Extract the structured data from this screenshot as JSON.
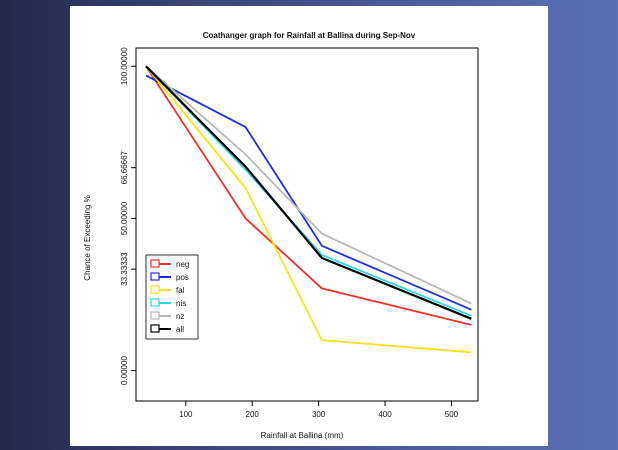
{
  "slide": {
    "background_left": "#23274a",
    "background_right": "#5b71b4"
  },
  "chart_data": {
    "type": "line",
    "title": "Coathanger graph for  Rainfall  at Ballina  during  Sep-Nov",
    "xlabel": "Rainfall at Ballina (mm)",
    "ylabel": "Chance of Exceeding %",
    "xlim": [
      25,
      540
    ],
    "ylim": [
      -10,
      106
    ],
    "x_ticks": [
      100,
      200,
      300,
      400,
      500
    ],
    "y_ticks": [
      {
        "value": 0,
        "label": "0.00000"
      },
      {
        "value": 33.33333,
        "label": "33.33333"
      },
      {
        "value": 50,
        "label": "50.00000"
      },
      {
        "value": 66.66667,
        "label": "66.66667"
      },
      {
        "value": 100,
        "label": "100.00000"
      }
    ],
    "legend_position": "bottom-left",
    "series": [
      {
        "name": "neg",
        "color": "#e8342c",
        "x": [
          40,
          190,
          305,
          530
        ],
        "y": [
          100,
          50,
          27,
          15
        ]
      },
      {
        "name": "pos",
        "color": "#1f2fd6",
        "x": [
          40,
          190,
          305,
          530
        ],
        "y": [
          97,
          80,
          41,
          20
        ]
      },
      {
        "name": "fal",
        "color": "#f4e21a",
        "x": [
          40,
          190,
          305,
          530
        ],
        "y": [
          100,
          60,
          10,
          6
        ]
      },
      {
        "name": "nis",
        "color": "#2fd6e6",
        "x": [
          40,
          190,
          305,
          530
        ],
        "y": [
          100,
          66,
          38,
          18
        ]
      },
      {
        "name": "nz",
        "color": "#b8b8b8",
        "x": [
          40,
          190,
          305,
          530
        ],
        "y": [
          100,
          71,
          45,
          22
        ]
      },
      {
        "name": "all",
        "color": "#000000",
        "x": [
          40,
          190,
          305,
          530
        ],
        "y": [
          100,
          67,
          37,
          17
        ]
      }
    ]
  }
}
